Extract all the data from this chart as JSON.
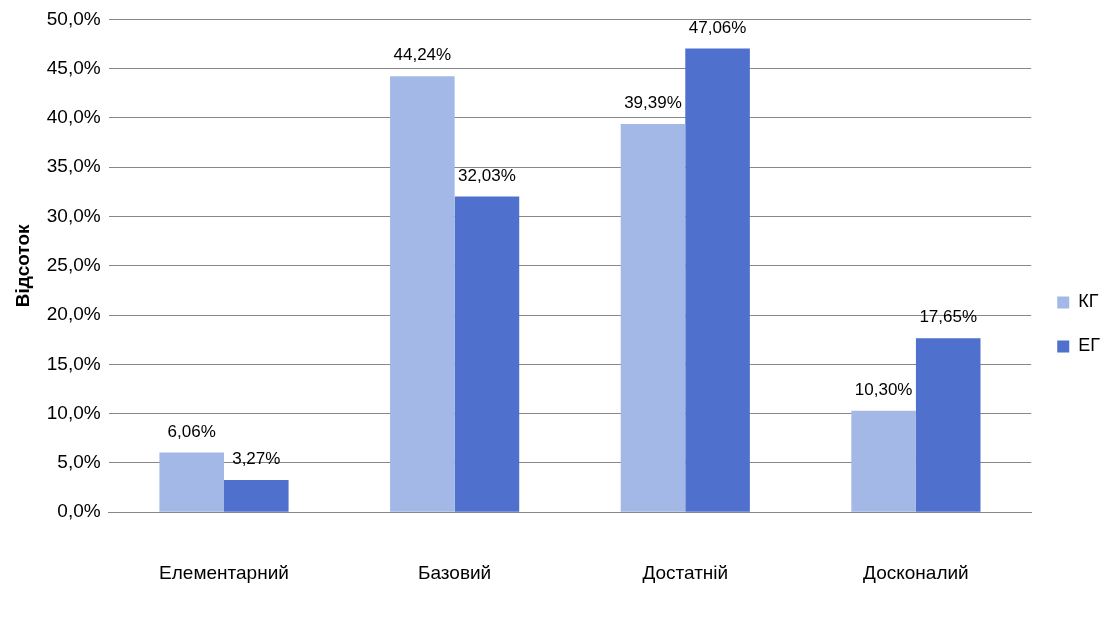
{
  "chart_data": {
    "type": "bar",
    "ylabel": "Відсоток",
    "categories": [
      "Елементарний",
      "Базовий",
      "Достатній",
      "Досконалий"
    ],
    "series": [
      {
        "name": "КГ",
        "color": "#a3b8e6",
        "values": [
          6.06,
          44.24,
          39.39,
          10.3
        ],
        "value_labels": [
          "6,06%",
          "44,24%",
          "39,39%",
          "10,30%"
        ]
      },
      {
        "name": "ЕГ",
        "color": "#4f70cc",
        "values": [
          3.27,
          32.03,
          47.06,
          17.65
        ],
        "value_labels": [
          "3,27%",
          "32,03%",
          "47,06%",
          "17,65%"
        ]
      }
    ],
    "ylim": [
      0,
      50
    ],
    "yticks": [
      {
        "value": 0,
        "label": "0,0%"
      },
      {
        "value": 5,
        "label": "5,0%"
      },
      {
        "value": 10,
        "label": "10,0%"
      },
      {
        "value": 15,
        "label": "15,0%"
      },
      {
        "value": 20,
        "label": "20,0%"
      },
      {
        "value": 25,
        "label": "25,0%"
      },
      {
        "value": 30,
        "label": "30,0%"
      },
      {
        "value": 35,
        "label": "35,0%"
      },
      {
        "value": 40,
        "label": "40,0%"
      },
      {
        "value": 45,
        "label": "45,0%"
      },
      {
        "value": 50,
        "label": "50,0%"
      }
    ],
    "grid": "y",
    "legend": "right"
  }
}
